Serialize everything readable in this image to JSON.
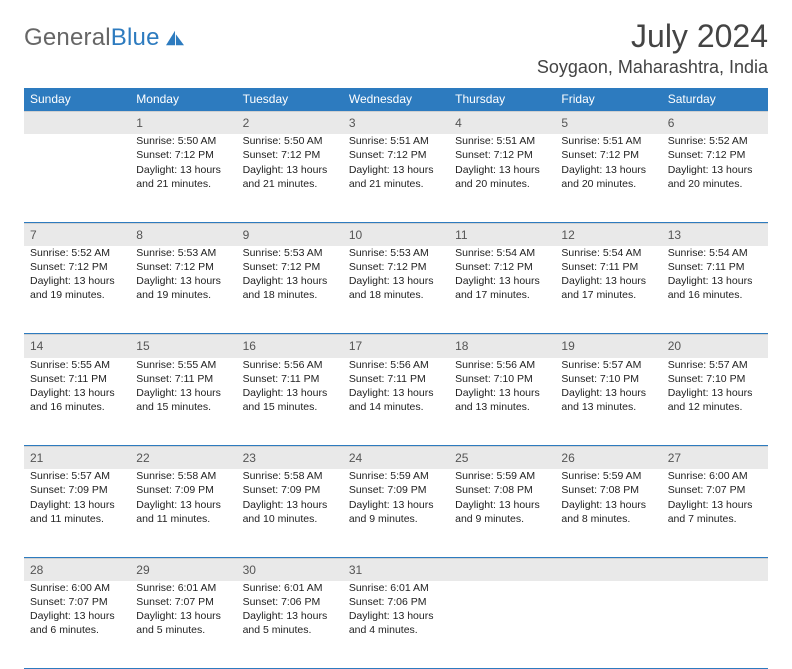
{
  "brand": {
    "name_a": "General",
    "name_b": "Blue"
  },
  "title": {
    "month": "July 2024",
    "location": "Soygaon, Maharashtra, India"
  },
  "colors": {
    "header_bg": "#2d7bbf",
    "daynum_bg": "#e9e9e9",
    "rule": "#2d7bbf"
  },
  "weekdays": [
    "Sunday",
    "Monday",
    "Tuesday",
    "Wednesday",
    "Thursday",
    "Friday",
    "Saturday"
  ],
  "weeks": [
    {
      "days": [
        {
          "n": "",
          "sunrise": "",
          "sunset": "",
          "daylight": ""
        },
        {
          "n": "1",
          "sunrise": "Sunrise: 5:50 AM",
          "sunset": "Sunset: 7:12 PM",
          "daylight": "Daylight: 13 hours and 21 minutes."
        },
        {
          "n": "2",
          "sunrise": "Sunrise: 5:50 AM",
          "sunset": "Sunset: 7:12 PM",
          "daylight": "Daylight: 13 hours and 21 minutes."
        },
        {
          "n": "3",
          "sunrise": "Sunrise: 5:51 AM",
          "sunset": "Sunset: 7:12 PM",
          "daylight": "Daylight: 13 hours and 21 minutes."
        },
        {
          "n": "4",
          "sunrise": "Sunrise: 5:51 AM",
          "sunset": "Sunset: 7:12 PM",
          "daylight": "Daylight: 13 hours and 20 minutes."
        },
        {
          "n": "5",
          "sunrise": "Sunrise: 5:51 AM",
          "sunset": "Sunset: 7:12 PM",
          "daylight": "Daylight: 13 hours and 20 minutes."
        },
        {
          "n": "6",
          "sunrise": "Sunrise: 5:52 AM",
          "sunset": "Sunset: 7:12 PM",
          "daylight": "Daylight: 13 hours and 20 minutes."
        }
      ]
    },
    {
      "days": [
        {
          "n": "7",
          "sunrise": "Sunrise: 5:52 AM",
          "sunset": "Sunset: 7:12 PM",
          "daylight": "Daylight: 13 hours and 19 minutes."
        },
        {
          "n": "8",
          "sunrise": "Sunrise: 5:53 AM",
          "sunset": "Sunset: 7:12 PM",
          "daylight": "Daylight: 13 hours and 19 minutes."
        },
        {
          "n": "9",
          "sunrise": "Sunrise: 5:53 AM",
          "sunset": "Sunset: 7:12 PM",
          "daylight": "Daylight: 13 hours and 18 minutes."
        },
        {
          "n": "10",
          "sunrise": "Sunrise: 5:53 AM",
          "sunset": "Sunset: 7:12 PM",
          "daylight": "Daylight: 13 hours and 18 minutes."
        },
        {
          "n": "11",
          "sunrise": "Sunrise: 5:54 AM",
          "sunset": "Sunset: 7:12 PM",
          "daylight": "Daylight: 13 hours and 17 minutes."
        },
        {
          "n": "12",
          "sunrise": "Sunrise: 5:54 AM",
          "sunset": "Sunset: 7:11 PM",
          "daylight": "Daylight: 13 hours and 17 minutes."
        },
        {
          "n": "13",
          "sunrise": "Sunrise: 5:54 AM",
          "sunset": "Sunset: 7:11 PM",
          "daylight": "Daylight: 13 hours and 16 minutes."
        }
      ]
    },
    {
      "days": [
        {
          "n": "14",
          "sunrise": "Sunrise: 5:55 AM",
          "sunset": "Sunset: 7:11 PM",
          "daylight": "Daylight: 13 hours and 16 minutes."
        },
        {
          "n": "15",
          "sunrise": "Sunrise: 5:55 AM",
          "sunset": "Sunset: 7:11 PM",
          "daylight": "Daylight: 13 hours and 15 minutes."
        },
        {
          "n": "16",
          "sunrise": "Sunrise: 5:56 AM",
          "sunset": "Sunset: 7:11 PM",
          "daylight": "Daylight: 13 hours and 15 minutes."
        },
        {
          "n": "17",
          "sunrise": "Sunrise: 5:56 AM",
          "sunset": "Sunset: 7:11 PM",
          "daylight": "Daylight: 13 hours and 14 minutes."
        },
        {
          "n": "18",
          "sunrise": "Sunrise: 5:56 AM",
          "sunset": "Sunset: 7:10 PM",
          "daylight": "Daylight: 13 hours and 13 minutes."
        },
        {
          "n": "19",
          "sunrise": "Sunrise: 5:57 AM",
          "sunset": "Sunset: 7:10 PM",
          "daylight": "Daylight: 13 hours and 13 minutes."
        },
        {
          "n": "20",
          "sunrise": "Sunrise: 5:57 AM",
          "sunset": "Sunset: 7:10 PM",
          "daylight": "Daylight: 13 hours and 12 minutes."
        }
      ]
    },
    {
      "days": [
        {
          "n": "21",
          "sunrise": "Sunrise: 5:57 AM",
          "sunset": "Sunset: 7:09 PM",
          "daylight": "Daylight: 13 hours and 11 minutes."
        },
        {
          "n": "22",
          "sunrise": "Sunrise: 5:58 AM",
          "sunset": "Sunset: 7:09 PM",
          "daylight": "Daylight: 13 hours and 11 minutes."
        },
        {
          "n": "23",
          "sunrise": "Sunrise: 5:58 AM",
          "sunset": "Sunset: 7:09 PM",
          "daylight": "Daylight: 13 hours and 10 minutes."
        },
        {
          "n": "24",
          "sunrise": "Sunrise: 5:59 AM",
          "sunset": "Sunset: 7:09 PM",
          "daylight": "Daylight: 13 hours and 9 minutes."
        },
        {
          "n": "25",
          "sunrise": "Sunrise: 5:59 AM",
          "sunset": "Sunset: 7:08 PM",
          "daylight": "Daylight: 13 hours and 9 minutes."
        },
        {
          "n": "26",
          "sunrise": "Sunrise: 5:59 AM",
          "sunset": "Sunset: 7:08 PM",
          "daylight": "Daylight: 13 hours and 8 minutes."
        },
        {
          "n": "27",
          "sunrise": "Sunrise: 6:00 AM",
          "sunset": "Sunset: 7:07 PM",
          "daylight": "Daylight: 13 hours and 7 minutes."
        }
      ]
    },
    {
      "days": [
        {
          "n": "28",
          "sunrise": "Sunrise: 6:00 AM",
          "sunset": "Sunset: 7:07 PM",
          "daylight": "Daylight: 13 hours and 6 minutes."
        },
        {
          "n": "29",
          "sunrise": "Sunrise: 6:01 AM",
          "sunset": "Sunset: 7:07 PM",
          "daylight": "Daylight: 13 hours and 5 minutes."
        },
        {
          "n": "30",
          "sunrise": "Sunrise: 6:01 AM",
          "sunset": "Sunset: 7:06 PM",
          "daylight": "Daylight: 13 hours and 5 minutes."
        },
        {
          "n": "31",
          "sunrise": "Sunrise: 6:01 AM",
          "sunset": "Sunset: 7:06 PM",
          "daylight": "Daylight: 13 hours and 4 minutes."
        },
        {
          "n": "",
          "sunrise": "",
          "sunset": "",
          "daylight": ""
        },
        {
          "n": "",
          "sunrise": "",
          "sunset": "",
          "daylight": ""
        },
        {
          "n": "",
          "sunrise": "",
          "sunset": "",
          "daylight": ""
        }
      ]
    }
  ]
}
